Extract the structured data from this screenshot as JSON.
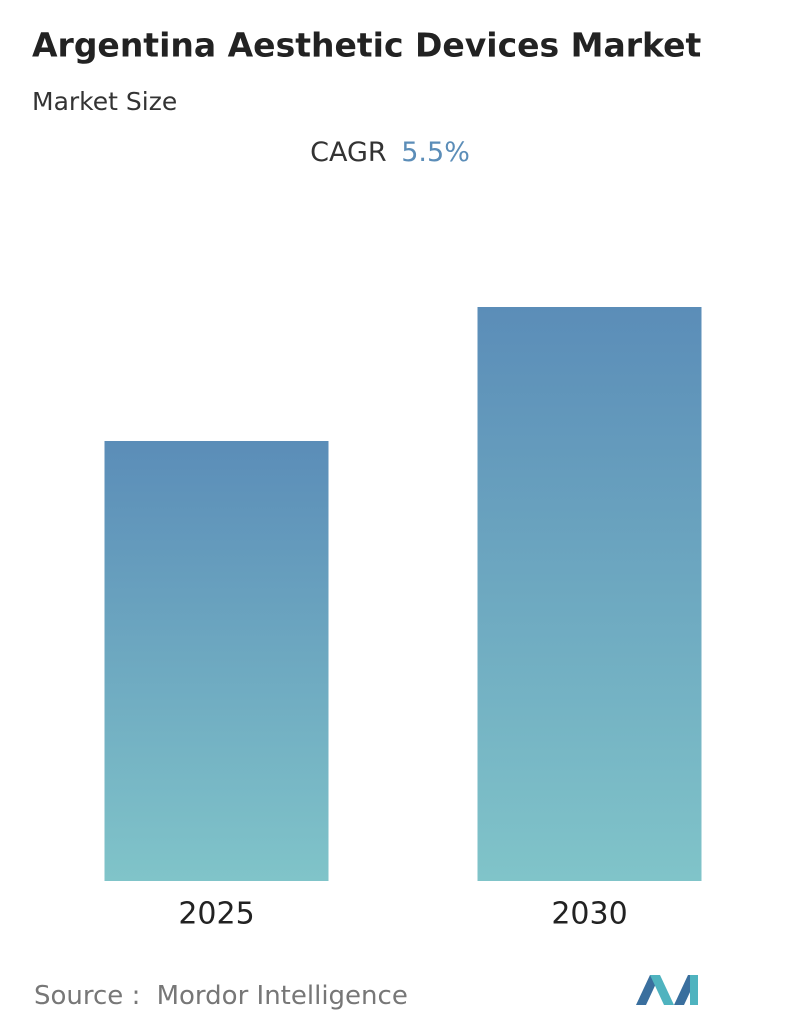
{
  "chart_data": {
    "type": "bar",
    "title": "Argentina Aesthetic Devices Market",
    "subtitle": "Market Size",
    "cagr_label": "CAGR",
    "cagr_value": "5.5%",
    "categories": [
      "2025",
      "2030"
    ],
    "values": [
      440,
      574
    ],
    "gradient": [
      "#5b8db8",
      "#80c4c9"
    ],
    "source_label": "Source :",
    "source": "Mordor Intelligence"
  }
}
